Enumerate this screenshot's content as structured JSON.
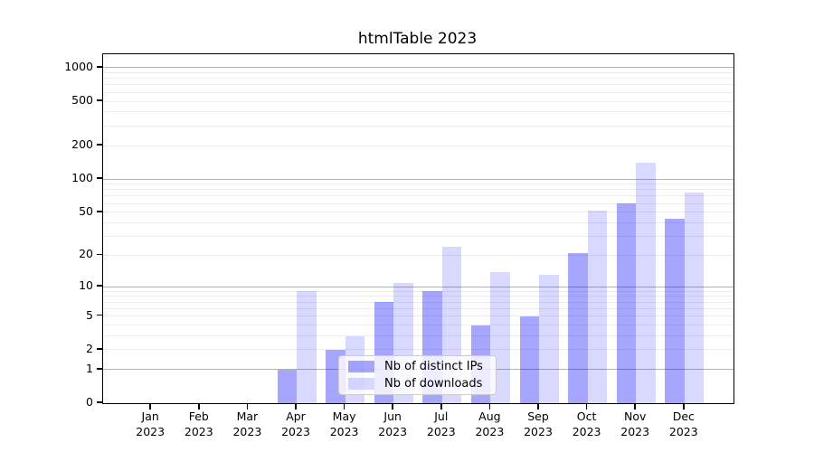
{
  "chart_data": {
    "type": "bar",
    "title": "htmlTable 2023",
    "categories": [
      "Jan",
      "Feb",
      "Mar",
      "Apr",
      "May",
      "Jun",
      "Jul",
      "Aug",
      "Sep",
      "Oct",
      "Nov",
      "Dec"
    ],
    "year": "2023",
    "series": [
      {
        "name": "Nb of distinct IPs",
        "color": "rgba(0,0,255,0.35)",
        "values": [
          0,
          0,
          0,
          1,
          2,
          7,
          9,
          4,
          5,
          21,
          60,
          44
        ]
      },
      {
        "name": "Nb of downloads",
        "color": "rgba(0,0,255,0.15)",
        "values": [
          0,
          0,
          0,
          9,
          3,
          11,
          24,
          14,
          13,
          52,
          140,
          75
        ]
      }
    ],
    "y_axis": {
      "scale": "log1p",
      "ticks": [
        0,
        1,
        2,
        5,
        10,
        20,
        50,
        100,
        200,
        500,
        1000
      ],
      "major_gridlines": [
        1,
        10,
        100,
        1000
      ],
      "minor_gridlines": [
        2,
        3,
        4,
        5,
        6,
        7,
        8,
        9,
        20,
        30,
        40,
        50,
        60,
        70,
        80,
        90,
        200,
        300,
        400,
        500,
        600,
        700,
        800,
        900
      ],
      "ylim": [
        0,
        1300
      ]
    },
    "x_axis": {
      "tick_label_lines": 2
    },
    "legend": {
      "position": "lower center",
      "frame": true
    },
    "colors": {
      "major_grid": "#b3b3b3",
      "minor_grid": "#ececec",
      "spine": "#000000"
    }
  }
}
